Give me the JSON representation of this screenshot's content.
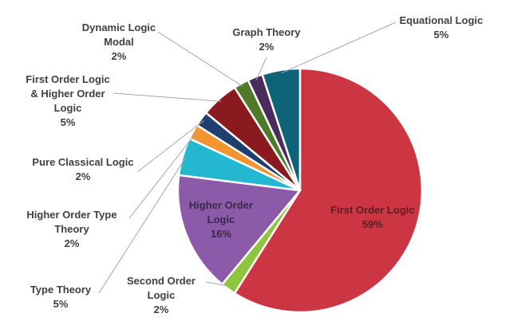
{
  "chart_data": {
    "type": "pie",
    "title": "",
    "slices": [
      {
        "name": "First Order Logic",
        "value": 59,
        "pct_label": "59%",
        "color": "#cc3542"
      },
      {
        "name": "Second Order Logic",
        "value": 2,
        "pct_label": "2%",
        "color": "#8cc63f"
      },
      {
        "name": "Higher Order Logic",
        "value": 16,
        "pct_label": "16%",
        "color": "#8b5aa8"
      },
      {
        "name": "Type Theory",
        "value": 5,
        "pct_label": "5%",
        "color": "#23b7d0"
      },
      {
        "name": "Higher Order Type Theory",
        "value": 2,
        "pct_label": "2%",
        "color": "#f39331"
      },
      {
        "name": "Pure Classical Logic",
        "value": 2,
        "pct_label": "2%",
        "color": "#203f6e"
      },
      {
        "name": "First Order Logic & Higher Order Logic",
        "value": 5,
        "pct_label": "5%",
        "color": "#8b1a1f"
      },
      {
        "name": "Dynamic Logic Modal",
        "value": 2,
        "pct_label": "2%",
        "color": "#4e7a2a"
      },
      {
        "name": "Graph Theory",
        "value": 2,
        "pct_label": "2%",
        "color": "#4a2d5c"
      },
      {
        "name": "Equational Logic",
        "value": 5,
        "pct_label": "5%",
        "color": "#0f6378"
      }
    ],
    "labels": {
      "First Order Logic": [
        "First Order Logic",
        "59%"
      ],
      "Second Order Logic": [
        "Second Order",
        "Logic",
        "2%"
      ],
      "Higher Order Logic": [
        "Higher Order",
        "Logic",
        "16%"
      ],
      "Type Theory": [
        "Type Theory",
        "5%"
      ],
      "Higher Order Type Theory": [
        "Higher Order Type",
        "Theory",
        "2%"
      ],
      "Pure Classical Logic": [
        "Pure Classical Logic",
        "2%"
      ],
      "First Order Logic & Higher Order Logic": [
        "First Order Logic",
        "& Higher Order",
        "Logic",
        "5%"
      ],
      "Dynamic Logic Modal": [
        "Dynamic Logic",
        "Modal",
        "2%"
      ],
      "Graph Theory": [
        "Graph Theory",
        "2%"
      ],
      "Equational Logic": [
        "Equational Logic",
        "5%"
      ]
    },
    "legend": "none"
  }
}
